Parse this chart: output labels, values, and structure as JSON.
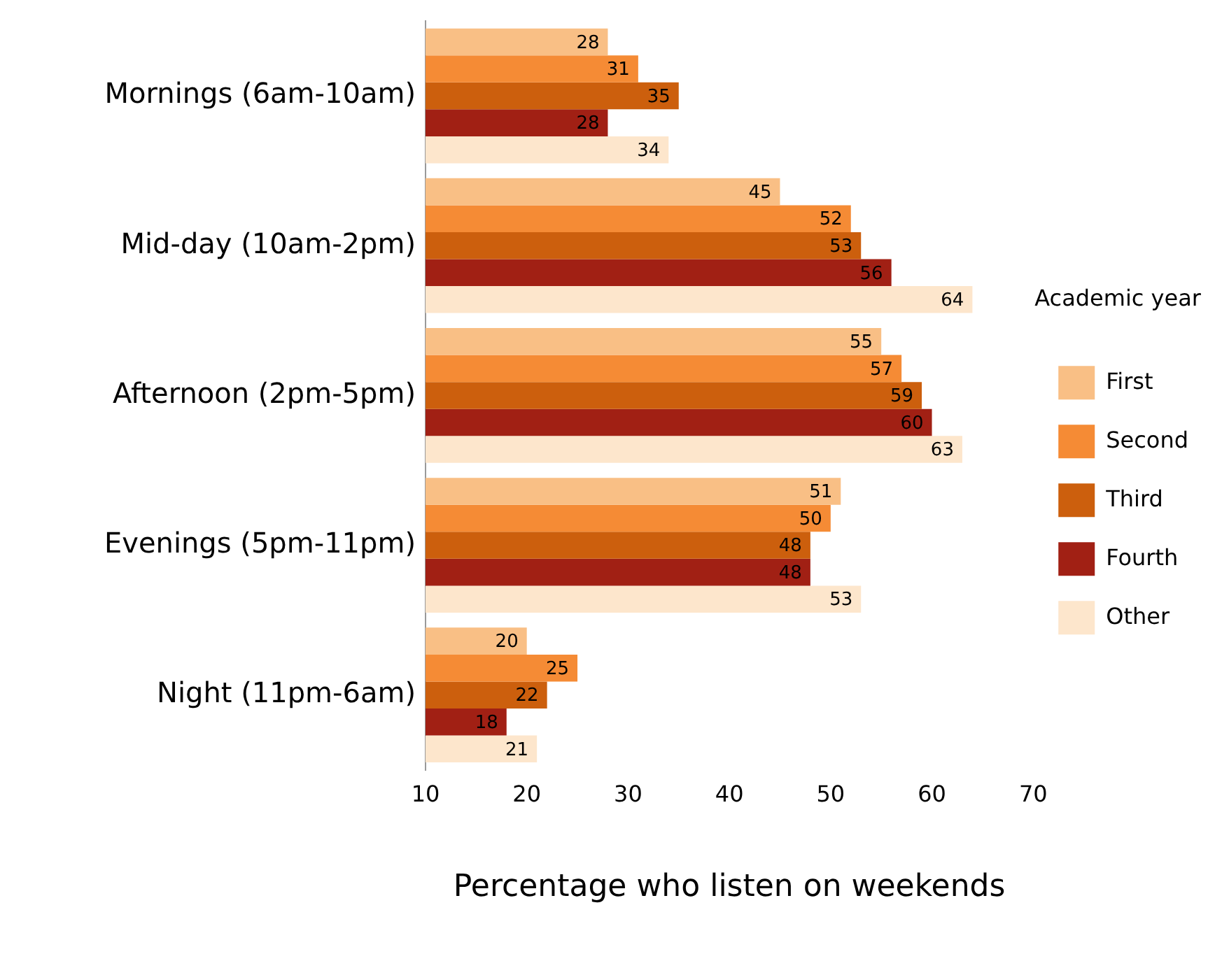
{
  "chart_data": {
    "type": "bar",
    "orientation": "horizontal",
    "xlabel": "Percentage who listen on weekends",
    "legend_title": "Academic year",
    "legend": "right",
    "data_labels": true,
    "grid": false,
    "categories": [
      "Mornings (6am-10am)",
      "Mid-day (10am-2pm)",
      "Afternoon (2pm-5pm)",
      "Evenings (5pm-11pm)",
      "Night (11pm-6am)"
    ],
    "xlim": [
      10,
      70
    ],
    "xticks": [
      10,
      20,
      30,
      40,
      50,
      60,
      70
    ],
    "series": [
      {
        "name": "First",
        "color": "#f9bf85",
        "values": [
          28,
          45,
          55,
          51,
          20
        ]
      },
      {
        "name": "Second",
        "color": "#f58b35",
        "values": [
          31,
          52,
          57,
          50,
          25
        ]
      },
      {
        "name": "Third",
        "color": "#cc5f0d",
        "values": [
          35,
          53,
          59,
          48,
          22
        ]
      },
      {
        "name": "Fourth",
        "color": "#a12014",
        "values": [
          28,
          56,
          60,
          48,
          18
        ]
      },
      {
        "name": "Other",
        "color": "#fde6cc",
        "values": [
          34,
          64,
          63,
          53,
          21
        ]
      }
    ]
  }
}
